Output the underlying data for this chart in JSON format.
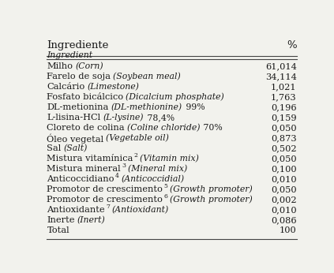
{
  "header_col1": "Ingrediente",
  "header_col1_italic": "Ingredient",
  "header_col2": "%",
  "rows": [
    {
      "pt": "Milho",
      "en": "(Corn)",
      "suffix": "",
      "sup": "",
      "value": "61,014"
    },
    {
      "pt": "Farelo de soja",
      "en": "(Soybean meal)",
      "suffix": "",
      "sup": "",
      "value": "34,114"
    },
    {
      "pt": "Calcário",
      "en": "(Limestone)",
      "suffix": "",
      "sup": "",
      "value": "1,021"
    },
    {
      "pt": "Fosfato bicálcico",
      "en": "(Dicalcium phosphate)",
      "suffix": "",
      "sup": "",
      "value": "1,763"
    },
    {
      "pt": "DL-metionina",
      "en": "(DL-methionine)",
      "suffix": " 99%",
      "sup": "",
      "value": "0,196"
    },
    {
      "pt": "L-lisina-HCl",
      "en": "(L-lysine)",
      "suffix": " 78,4%",
      "sup": "",
      "value": "0,159"
    },
    {
      "pt": "Cloreto de colina",
      "en": "(Coline chloride)",
      "suffix": " 70%",
      "sup": "",
      "value": "0,050"
    },
    {
      "pt": "Óleo vegetal",
      "en": "(Vegetable oil)",
      "suffix": "",
      "sup": "",
      "value": "0,873"
    },
    {
      "pt": "Sal",
      "en": "(Salt)",
      "suffix": "",
      "sup": "",
      "value": "0,502"
    },
    {
      "pt": "Mistura vitamínica",
      "en": "(Vitamin mix)",
      "suffix": "",
      "sup": "2",
      "value": "0,050"
    },
    {
      "pt": "Mistura mineral",
      "en": "(Mineral mix)",
      "suffix": "",
      "sup": "3",
      "value": "0,100"
    },
    {
      "pt": "Anticoccidiano",
      "en": "(Anticoccidial)",
      "suffix": "",
      "sup": "4",
      "value": "0,010"
    },
    {
      "pt": "Promotor de crescimento",
      "en": "(Growth promoter)",
      "suffix": "",
      "sup": "5",
      "value": "0,050"
    },
    {
      "pt": "Promotor de crescimento",
      "en": "(Growth promoter)",
      "suffix": "",
      "sup": "6",
      "value": "0,002"
    },
    {
      "pt": "Antioxidante",
      "en": "(Antioxidant)",
      "suffix": "",
      "sup": "7",
      "value": "0,010"
    },
    {
      "pt": "Inerte",
      "en": "(Inert)",
      "suffix": "",
      "sup": "",
      "value": "0,086"
    },
    {
      "pt": "Total",
      "en": "",
      "suffix": "",
      "sup": "",
      "value": "100"
    }
  ],
  "bg_color": "#f2f2ed",
  "text_color": "#1a1a1a",
  "line_color": "#444444",
  "font_size_header": 9.5,
  "font_size_row": 8.2,
  "font_size_italic": 7.8,
  "font_size_sup": 5.5
}
